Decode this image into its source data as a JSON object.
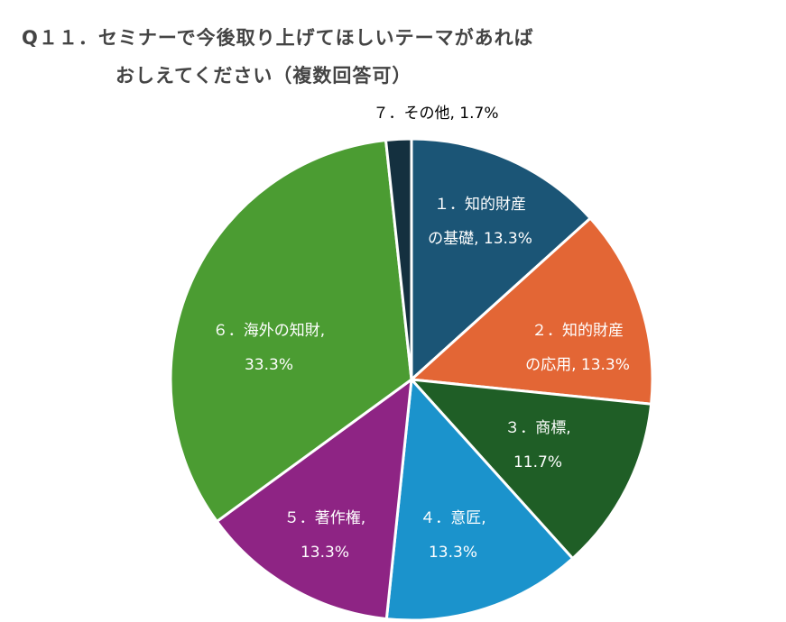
{
  "title": {
    "line1": "Q１１．セミナーで今後取り上げてほしいテーマがあれば",
    "line2": "おしえてください（複数回答可）"
  },
  "chart_data": {
    "type": "pie",
    "title": "Q１１．セミナーで今後取り上げてほしいテーマがあれば おしえてください（複数回答可）",
    "slices": [
      {
        "label": "１．知的財産の基礎",
        "value": 13.3,
        "label_lines": [
          "１．知的財産",
          "の基礎, 13.3%"
        ],
        "color": "#1b5576",
        "text_color": "#ffffff"
      },
      {
        "label": "２．知的財産の応用",
        "value": 13.3,
        "label_lines": [
          "２．知的財産",
          "の応用, 13.3%"
        ],
        "color": "#e36635",
        "text_color": "#ffffff"
      },
      {
        "label": "３．商標",
        "value": 11.7,
        "label_lines": [
          "３．商標,",
          "11.7%"
        ],
        "color": "#1f5e26",
        "text_color": "#ffffff"
      },
      {
        "label": "４．意匠",
        "value": 13.3,
        "label_lines": [
          "４．意匠,",
          "13.3%"
        ],
        "color": "#1b93cc",
        "text_color": "#ffffff"
      },
      {
        "label": "５．著作権",
        "value": 13.3,
        "label_lines": [
          "５．著作権,",
          "13.3%"
        ],
        "color": "#8e2484",
        "text_color": "#ffffff"
      },
      {
        "label": "６．海外の知財",
        "value": 33.3,
        "label_lines": [
          "６．海外の知財,",
          "33.3%"
        ],
        "color": "#4b9c32",
        "text_color": "#ffffff"
      },
      {
        "label": "７．その他",
        "value": 1.7,
        "label_lines": [
          "７．その他, 1.7%"
        ],
        "color": "#14303f",
        "text_color": "#000000"
      }
    ]
  }
}
